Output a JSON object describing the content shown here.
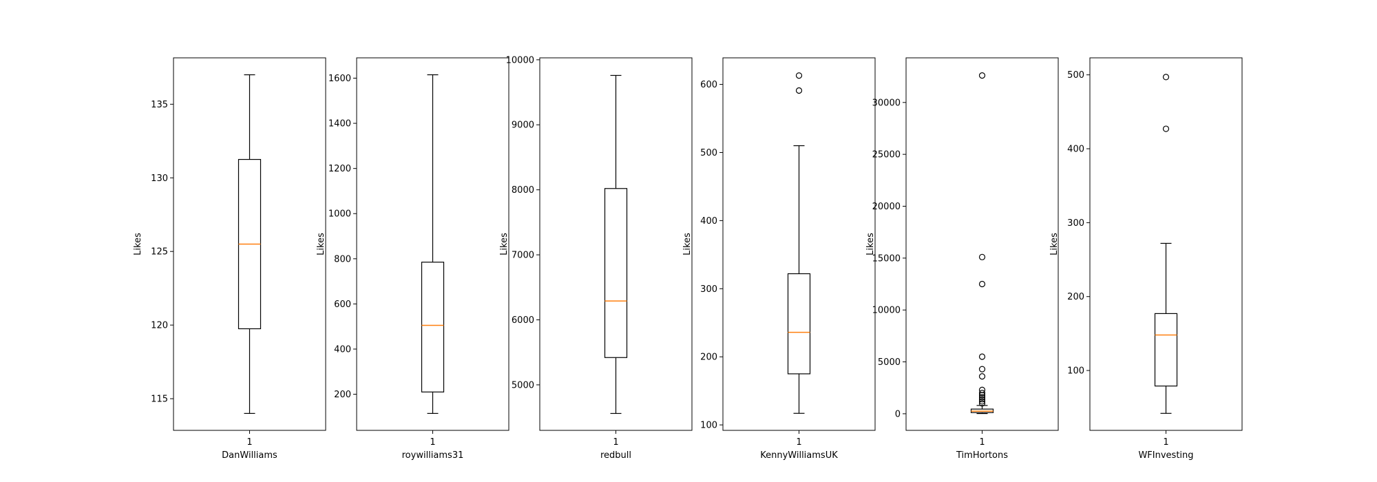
{
  "chart_data": [
    {
      "type": "box",
      "categories": [
        "1"
      ],
      "xlabel": "DanWilliams",
      "ylabel": "Likes",
      "ylim": [
        112.85,
        138.15
      ],
      "yticks": [
        115,
        120,
        125,
        130,
        135
      ],
      "boxes": [
        {
          "whislo": 114.0,
          "q1": 119.75,
          "med": 125.5,
          "q3": 131.25,
          "whishi": 137.0,
          "fliers": []
        }
      ]
    },
    {
      "type": "box",
      "categories": [
        "1"
      ],
      "xlabel": "roywilliams31",
      "ylabel": "Likes",
      "ylim": [
        40,
        1690
      ],
      "yticks": [
        200,
        400,
        600,
        800,
        1000,
        1200,
        1400,
        1600
      ],
      "boxes": [
        {
          "whislo": 115,
          "q1": 210,
          "med": 505,
          "q3": 785,
          "whishi": 1615,
          "fliers": []
        }
      ]
    },
    {
      "type": "box",
      "categories": [
        "1"
      ],
      "xlabel": "redbull",
      "ylabel": "Likes",
      "ylim": [
        4300,
        10030
      ],
      "yticks": [
        5000,
        6000,
        7000,
        8000,
        9000,
        10000
      ],
      "boxes": [
        {
          "whislo": 4560,
          "q1": 5420,
          "med": 6290,
          "q3": 8020,
          "whishi": 9760,
          "fliers": []
        }
      ]
    },
    {
      "type": "box",
      "categories": [
        "1"
      ],
      "xlabel": "KennyWilliamsUK",
      "ylabel": "Likes",
      "ylim": [
        92,
        639
      ],
      "yticks": [
        100,
        200,
        300,
        400,
        500,
        600
      ],
      "boxes": [
        {
          "whislo": 117,
          "q1": 175,
          "med": 236,
          "q3": 322,
          "whishi": 510,
          "fliers": [
            591,
            613
          ]
        }
      ]
    },
    {
      "type": "box",
      "categories": [
        "1"
      ],
      "xlabel": "TimHortons",
      "ylabel": "Likes",
      "ylim": [
        -1600,
        34300
      ],
      "yticks": [
        0,
        5000,
        10000,
        15000,
        20000,
        25000,
        30000
      ],
      "boxes": [
        {
          "whislo": 20,
          "q1": 110,
          "med": 250,
          "q3": 450,
          "whishi": 800,
          "fliers": [
            1000,
            1200,
            1400,
            1600,
            1800,
            2000,
            2300,
            3600,
            4300,
            5500,
            12500,
            15100,
            32600
          ]
        }
      ]
    },
    {
      "type": "box",
      "categories": [
        "1"
      ],
      "xlabel": "WFInvesting",
      "ylabel": "Likes",
      "ylim": [
        19,
        523
      ],
      "yticks": [
        100,
        200,
        300,
        400,
        500
      ],
      "boxes": [
        {
          "whislo": 42,
          "q1": 79,
          "med": 148,
          "q3": 177,
          "whishi": 272,
          "fliers": [
            427,
            497
          ]
        }
      ]
    }
  ],
  "colors": {
    "median": "#ff7f0e",
    "box": "#000000",
    "axes": "#000000"
  }
}
